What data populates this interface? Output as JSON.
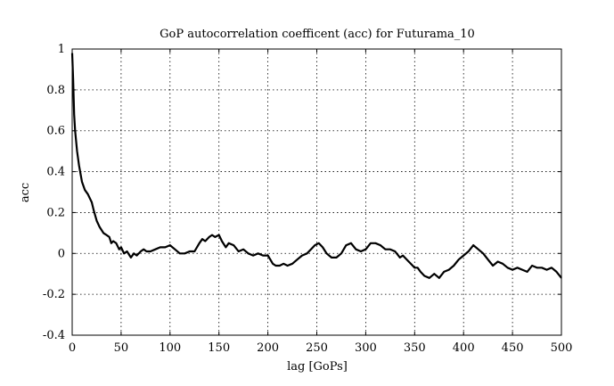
{
  "chart_data": {
    "type": "line",
    "title": "GoP autocorrelation coefficent (acc) for Futurama_10",
    "xlabel": "lag [GoPs]",
    "ylabel": "acc",
    "xlim": [
      0,
      500
    ],
    "ylim": [
      -0.4,
      1
    ],
    "xticks": [
      "0",
      "50",
      "100",
      "150",
      "200",
      "250",
      "300",
      "350",
      "400",
      "450",
      "500"
    ],
    "yticks": [
      "-0.4",
      "-0.2",
      "0",
      "0.2",
      "0.4",
      "0.6",
      "0.8",
      "1"
    ],
    "grid": true,
    "legend": "none",
    "series": [
      {
        "x": [
          0,
          1,
          2,
          3,
          5,
          7,
          10,
          13,
          16,
          20,
          22,
          25,
          28,
          32,
          35,
          38,
          40,
          42,
          45,
          48,
          50,
          53,
          56,
          60,
          63,
          66,
          70,
          73,
          76,
          80,
          85,
          90,
          95,
          100,
          105,
          110,
          115,
          120,
          125,
          130,
          133,
          136,
          140,
          143,
          146,
          150,
          153,
          157,
          160,
          165,
          170,
          175,
          180,
          185,
          190,
          195,
          200,
          205,
          208,
          212,
          216,
          220,
          225,
          230,
          235,
          240,
          244,
          248,
          252,
          256,
          260,
          265,
          270,
          275,
          280,
          285,
          290,
          295,
          300,
          305,
          310,
          315,
          320,
          325,
          330,
          335,
          338,
          342,
          346,
          350,
          353,
          356,
          360,
          365,
          370,
          375,
          380,
          385,
          390,
          395,
          400,
          405,
          410,
          415,
          420,
          425,
          430,
          435,
          440,
          445,
          450,
          455,
          460,
          465,
          470,
          475,
          480,
          485,
          490,
          495,
          500
        ],
        "values": [
          0.98,
          0.85,
          0.68,
          0.6,
          0.5,
          0.43,
          0.35,
          0.31,
          0.29,
          0.25,
          0.21,
          0.16,
          0.13,
          0.1,
          0.09,
          0.08,
          0.05,
          0.06,
          0.05,
          0.02,
          0.03,
          0.0,
          0.01,
          -0.02,
          0.0,
          -0.01,
          0.01,
          0.02,
          0.01,
          0.01,
          0.02,
          0.03,
          0.03,
          0.04,
          0.02,
          0.0,
          0.0,
          0.01,
          0.01,
          0.05,
          0.07,
          0.06,
          0.08,
          0.09,
          0.08,
          0.09,
          0.06,
          0.03,
          0.05,
          0.04,
          0.01,
          0.02,
          0.0,
          -0.01,
          0.0,
          -0.01,
          -0.01,
          -0.05,
          -0.06,
          -0.06,
          -0.05,
          -0.06,
          -0.05,
          -0.03,
          -0.01,
          0.0,
          0.02,
          0.04,
          0.05,
          0.03,
          0.0,
          -0.02,
          -0.02,
          0.0,
          0.04,
          0.05,
          0.02,
          0.01,
          0.02,
          0.05,
          0.05,
          0.04,
          0.02,
          0.02,
          0.01,
          -0.02,
          -0.01,
          -0.03,
          -0.05,
          -0.07,
          -0.07,
          -0.09,
          -0.11,
          -0.12,
          -0.1,
          -0.12,
          -0.09,
          -0.08,
          -0.06,
          -0.03,
          -0.01,
          0.01,
          0.04,
          0.02,
          0.0,
          -0.03,
          -0.06,
          -0.04,
          -0.05,
          -0.07,
          -0.08,
          -0.07,
          -0.08,
          -0.09,
          -0.06,
          -0.07,
          -0.07,
          -0.08,
          -0.07,
          -0.09,
          -0.12
        ]
      }
    ]
  }
}
